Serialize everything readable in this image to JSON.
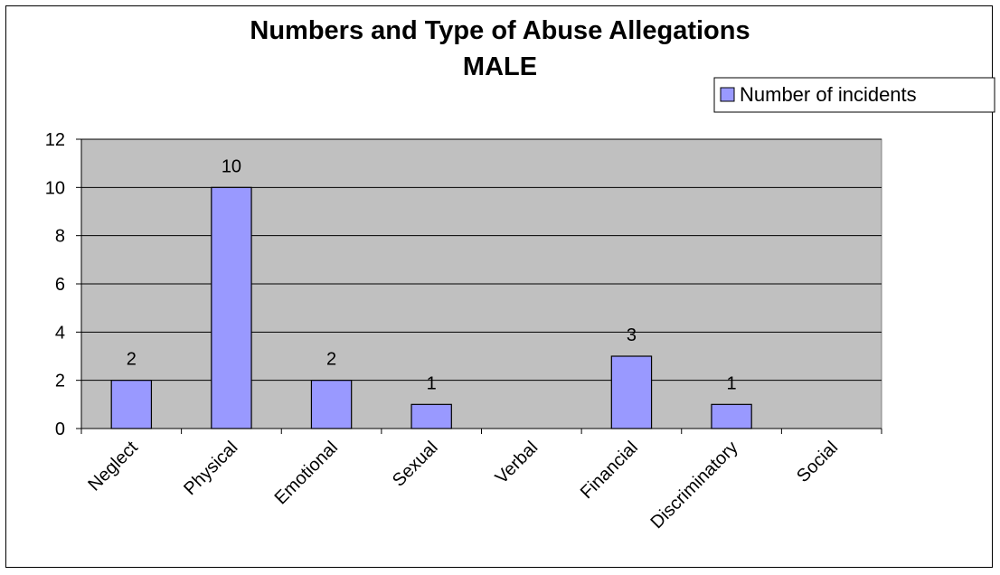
{
  "chart_data": {
    "type": "bar",
    "title": "Numbers and Type of Abuse Allegations",
    "subtitle": "MALE",
    "categories": [
      "Neglect",
      "Physical",
      "Emotional",
      "Sexual",
      "Verbal",
      "Financial",
      "Discriminatory",
      "Social"
    ],
    "series": [
      {
        "name": "Number of incidents",
        "values": [
          2,
          10,
          2,
          1,
          0,
          3,
          1,
          0
        ]
      }
    ],
    "data_labels": [
      "2",
      "10",
      "2",
      "1",
      "",
      "3",
      "1",
      ""
    ],
    "ylim": [
      0,
      12
    ],
    "yticks": [
      0,
      2,
      4,
      6,
      8,
      10,
      12
    ],
    "xlabel": "",
    "ylabel": "",
    "grid": true,
    "legend_position": "top-right",
    "colors": {
      "bar": "#9999ff",
      "plot_bg": "#c0c0c0",
      "grid": "#000000"
    }
  }
}
